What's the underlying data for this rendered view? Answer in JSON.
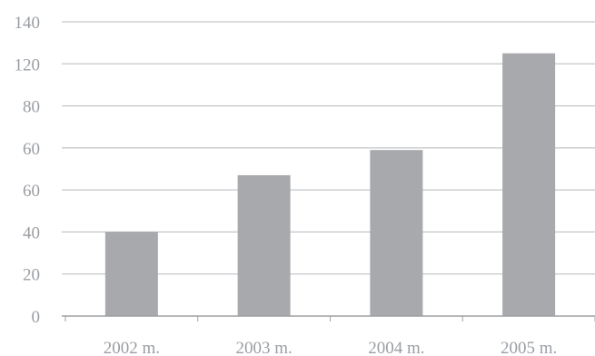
{
  "chart_data": {
    "type": "bar",
    "categories": [
      "2002 m.",
      "2003 m.",
      "2004 m.",
      "2005 m."
    ],
    "values": [
      40,
      67,
      79,
      125
    ],
    "yticks": [
      "0",
      "20",
      "40",
      "60",
      "60",
      "80",
      "120",
      "140"
    ],
    "ylim": [
      0,
      140
    ],
    "grid": true,
    "title": "",
    "xlabel": "",
    "ylabel": "",
    "colors": {
      "bar": "#a7a9ac",
      "grid": "#b5b8bb",
      "axis": "#9ea1a4",
      "text": "#9a9ea3"
    }
  }
}
